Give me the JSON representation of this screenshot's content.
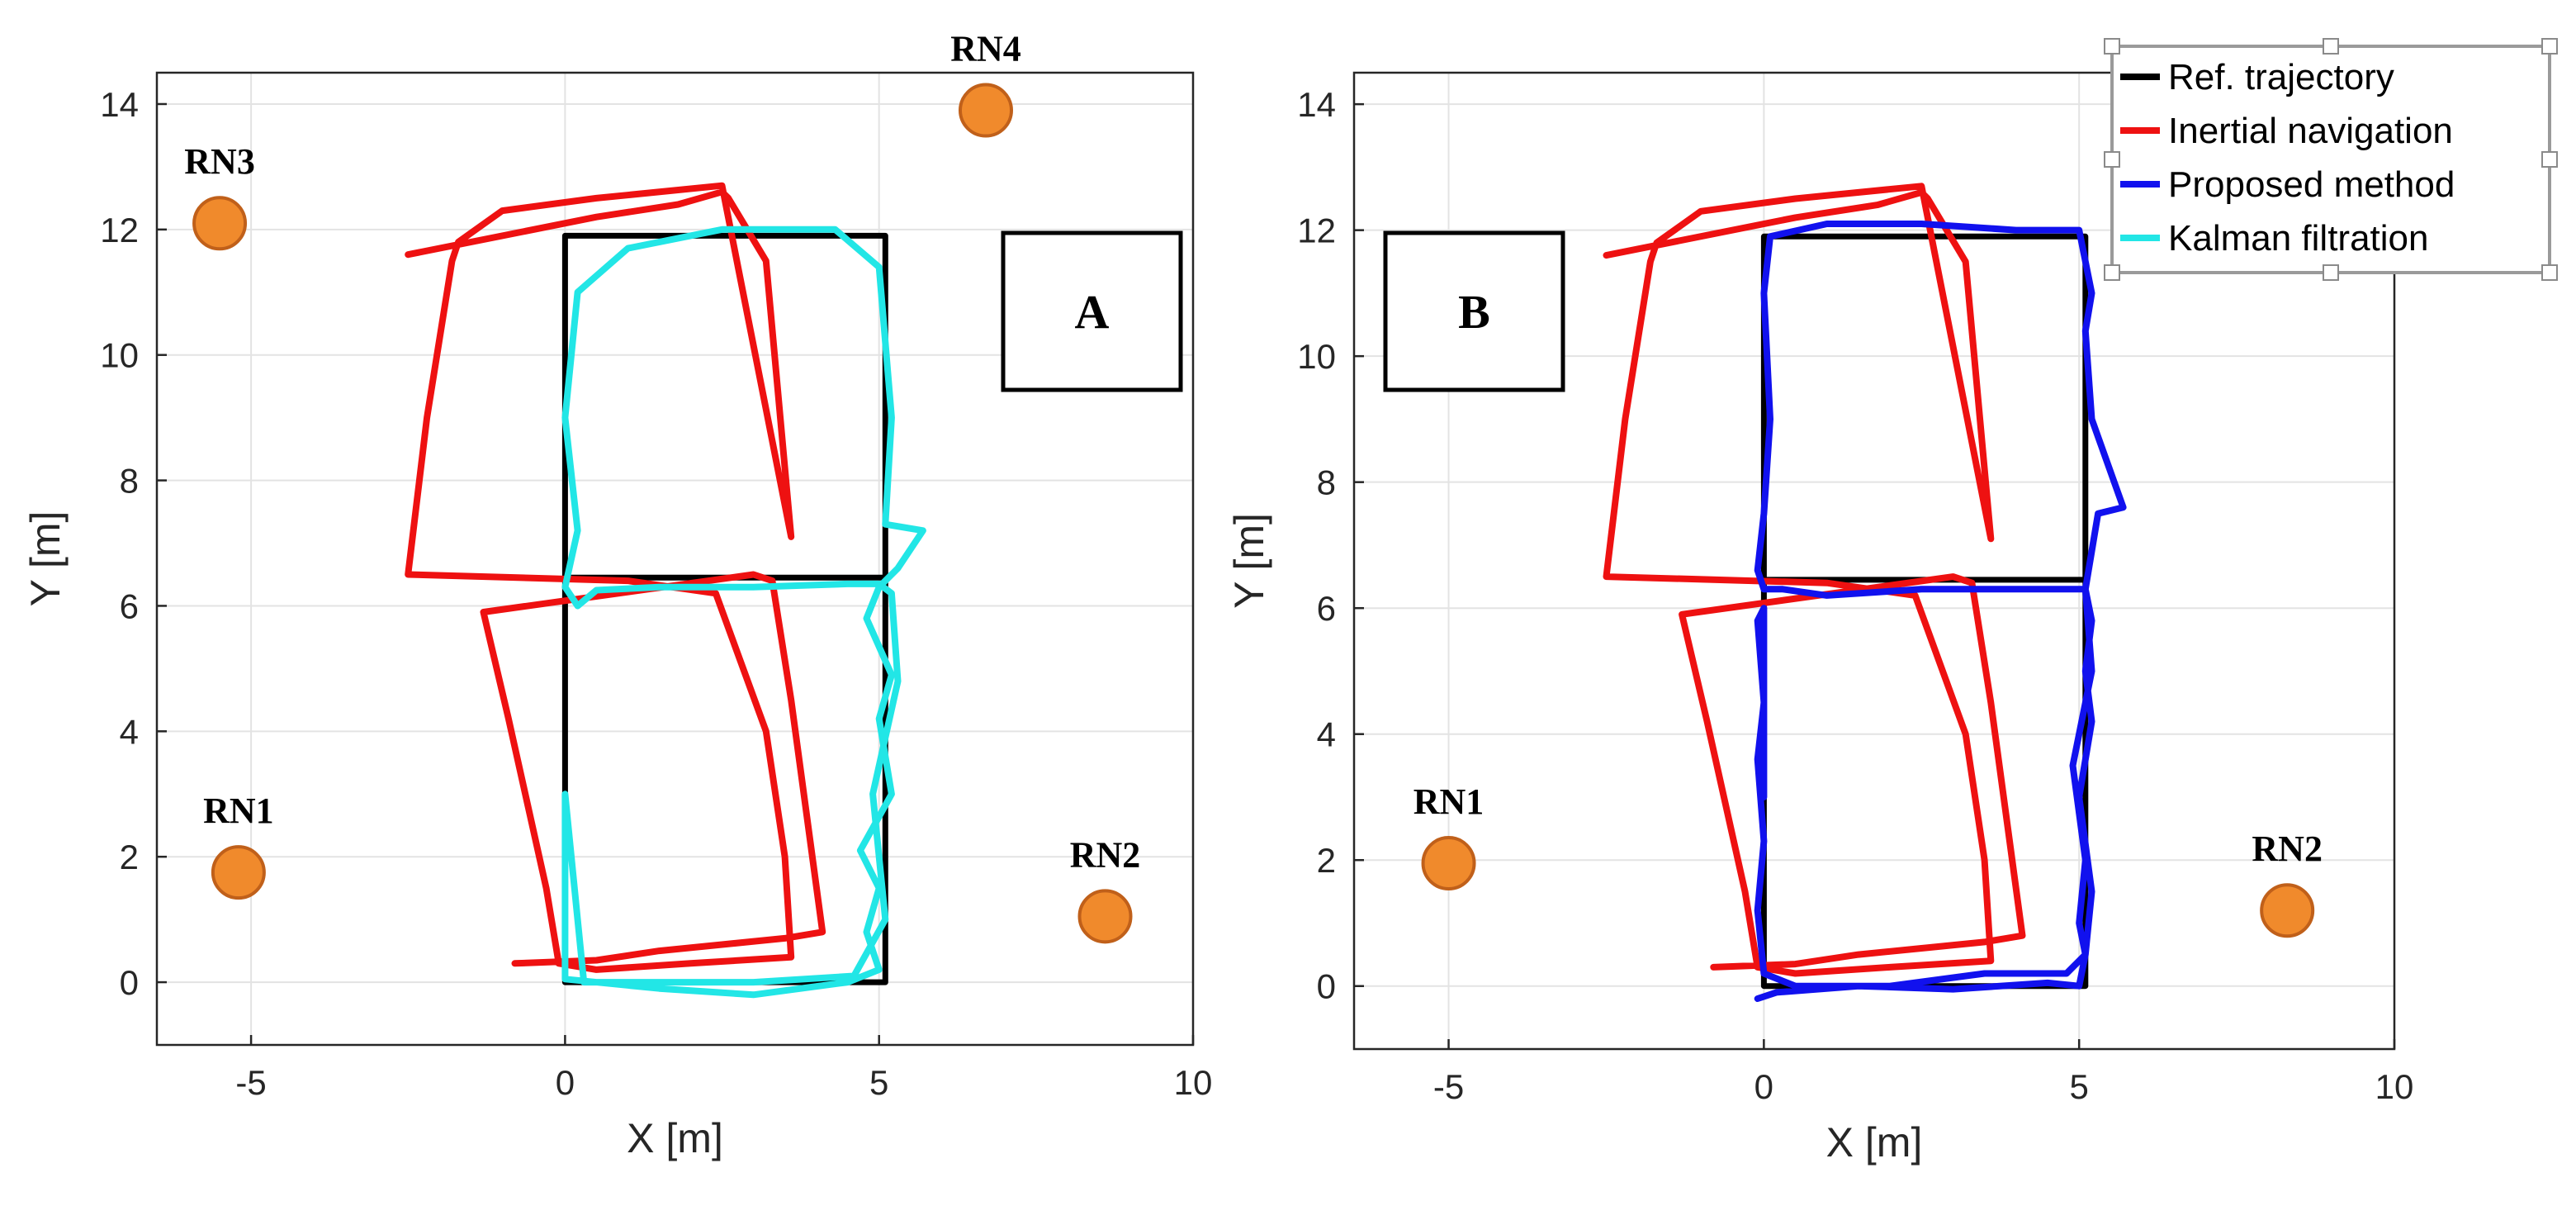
{
  "chart_data": [
    {
      "type": "line",
      "panel_label": "A",
      "xlabel": "X [m]",
      "ylabel": "Y [m]",
      "xlim": [
        -6.5,
        10
      ],
      "ylim": [
        -1,
        14.5
      ],
      "xticks": [
        -5,
        0,
        5,
        10
      ],
      "yticks": [
        0,
        2,
        4,
        6,
        8,
        10,
        12,
        14
      ],
      "grid": true,
      "series": [
        {
          "name": "Ref. trajectory",
          "color": "#000000",
          "x": [
            0,
            5.1,
            5.1,
            0,
            0,
            0,
            5.1,
            5.1,
            0,
            0
          ],
          "y": [
            0,
            0,
            6.45,
            6.45,
            11.9,
            11.9,
            11.9,
            6.45,
            6.45,
            0
          ]
        },
        {
          "name": "Inertial navigation",
          "color": "#ee1111",
          "x": [
            -0.8,
            0.5,
            1.5,
            2.5,
            3.5,
            4.1,
            3.6,
            3.3,
            3.0,
            -1.3,
            -0.9,
            -0.3,
            -0.1,
            0.5,
            2.0,
            3.6,
            3.5,
            3.2,
            2.4,
            1.0,
            -2.5,
            -2.2,
            -1.8,
            -1.7,
            -1.0,
            0.5,
            2.5,
            3.6,
            3.2,
            2.6,
            2.5,
            1.8,
            0.5,
            -2.5
          ],
          "y": [
            0.3,
            0.35,
            0.5,
            0.6,
            0.7,
            0.8,
            4.5,
            6.4,
            6.5,
            5.9,
            4.2,
            1.5,
            0.3,
            0.2,
            0.3,
            0.4,
            2.0,
            4.0,
            6.2,
            6.4,
            6.5,
            9.0,
            11.5,
            11.8,
            12.3,
            12.5,
            12.7,
            7.1,
            11.5,
            12.5,
            12.6,
            12.4,
            12.2,
            11.6
          ]
        },
        {
          "name": "Kalman filtration",
          "color": "#22e6e6",
          "x": [
            0,
            1.5,
            3.0,
            4.5,
            5.0,
            4.8,
            5.0,
            4.7,
            5.2,
            5.0,
            5.2,
            4.8,
            5.0,
            5.3,
            5.7,
            5.1,
            5.2,
            5.0,
            4.3,
            2.5,
            1.0,
            0.2,
            0.0,
            0.2,
            0.0,
            0.2,
            0.5,
            1.5,
            3.0,
            4.5,
            5.0,
            5.2,
            5.3,
            4.9,
            5.1,
            4.6,
            3.0,
            1.5,
            0.3,
            0.0,
            0.0
          ],
          "y": [
            0.05,
            -0.1,
            -0.2,
            0.0,
            0.2,
            0.8,
            1.5,
            2.1,
            3.0,
            4.2,
            4.9,
            5.8,
            6.3,
            6.6,
            7.2,
            7.3,
            9.0,
            11.4,
            12.0,
            12.0,
            11.7,
            11.0,
            9.0,
            7.2,
            6.3,
            6.0,
            6.25,
            6.3,
            6.3,
            6.35,
            6.35,
            6.2,
            4.8,
            3.0,
            1.0,
            0.1,
            0.0,
            0.0,
            0.0,
            3.0,
            0.05
          ]
        }
      ],
      "markers": [
        {
          "label": "RN1",
          "x": -5.2,
          "y": 1.75
        },
        {
          "label": "RN2",
          "x": 8.6,
          "y": 1.05
        },
        {
          "label": "RN3",
          "x": -5.5,
          "y": 12.1
        },
        {
          "label": "RN4",
          "x": 6.7,
          "y": 13.9
        }
      ]
    },
    {
      "type": "line",
      "panel_label": "B",
      "xlabel": "X [m]",
      "ylabel": "Y [m]",
      "xlim": [
        -6.5,
        10
      ],
      "ylim": [
        -1,
        14.5
      ],
      "xticks": [
        -5,
        0,
        5,
        10
      ],
      "yticks": [
        0,
        2,
        4,
        6,
        8,
        10,
        12,
        14
      ],
      "grid": true,
      "series": [
        {
          "name": "Ref. trajectory",
          "color": "#000000",
          "x": [
            0,
            5.1,
            5.1,
            0,
            0,
            0,
            5.1,
            5.1,
            0,
            0
          ],
          "y": [
            0,
            0,
            6.45,
            6.45,
            11.9,
            11.9,
            11.9,
            6.45,
            6.45,
            0
          ]
        },
        {
          "name": "Inertial navigation",
          "color": "#ee1111",
          "x": [
            -0.8,
            0.5,
            1.5,
            2.5,
            3.5,
            4.1,
            3.6,
            3.3,
            3.0,
            -1.3,
            -0.9,
            -0.3,
            -0.1,
            0.5,
            2.0,
            3.6,
            3.5,
            3.2,
            2.4,
            1.0,
            -2.5,
            -2.2,
            -1.8,
            -1.7,
            -1.0,
            0.5,
            2.5,
            3.6,
            3.2,
            2.6,
            2.5,
            1.8,
            0.5,
            -2.5
          ],
          "y": [
            0.3,
            0.35,
            0.5,
            0.6,
            0.7,
            0.8,
            4.5,
            6.4,
            6.5,
            5.9,
            4.2,
            1.5,
            0.3,
            0.2,
            0.3,
            0.4,
            2.0,
            4.0,
            6.2,
            6.4,
            6.5,
            9.0,
            11.5,
            11.8,
            12.3,
            12.5,
            12.7,
            7.1,
            11.5,
            12.5,
            12.6,
            12.4,
            12.2,
            11.6
          ]
        },
        {
          "name": "Proposed method",
          "color": "#1111ee",
          "x": [
            -0.1,
            0.2,
            1.5,
            3.0,
            4.5,
            5.0,
            5.1,
            5.2,
            5.0,
            5.2,
            5.1,
            5.2,
            5.1,
            5.3,
            5.7,
            5.2,
            5.1,
            5.2,
            5.0,
            4.0,
            2.5,
            1.0,
            0.1,
            0.0,
            0.1,
            0.0,
            -0.1,
            0.0,
            0.3,
            1.0,
            2.5,
            4.0,
            5.1,
            5.2,
            4.9,
            5.1,
            5.0,
            5.1,
            4.8,
            3.5,
            2.0,
            0.5,
            0.0,
            -0.1,
            0.0,
            -0.1,
            0.0,
            -0.1,
            0.0,
            0.0
          ],
          "y": [
            -0.2,
            -0.1,
            0.0,
            -0.05,
            0.05,
            0.0,
            0.5,
            1.5,
            3.0,
            4.2,
            5.0,
            5.8,
            6.3,
            7.5,
            7.6,
            9.0,
            10.4,
            11.0,
            12.0,
            12.0,
            12.1,
            12.1,
            11.9,
            11.0,
            9.0,
            7.5,
            6.6,
            6.3,
            6.3,
            6.2,
            6.3,
            6.3,
            6.3,
            5.0,
            3.5,
            2.0,
            1.0,
            0.5,
            0.2,
            0.2,
            0.0,
            0.0,
            0.2,
            1.2,
            2.3,
            3.6,
            4.5,
            5.8,
            6.0,
            3.0
          ]
        }
      ],
      "markers": [
        {
          "label": "RN1",
          "x": -5.0,
          "y": 1.95
        },
        {
          "label": "RN2",
          "x": 8.3,
          "y": 1.2
        }
      ]
    }
  ],
  "legend": {
    "entries": [
      {
        "label": "Ref. trajectory",
        "color": "#000000"
      },
      {
        "label": "Inertial navigation",
        "color": "#ee1111"
      },
      {
        "label": "Proposed method",
        "color": "#1111ee"
      },
      {
        "label": "Kalman filtration",
        "color": "#22e6e6"
      }
    ]
  },
  "marker_color": "#f08a2c",
  "marker_edge": "#c0601a"
}
